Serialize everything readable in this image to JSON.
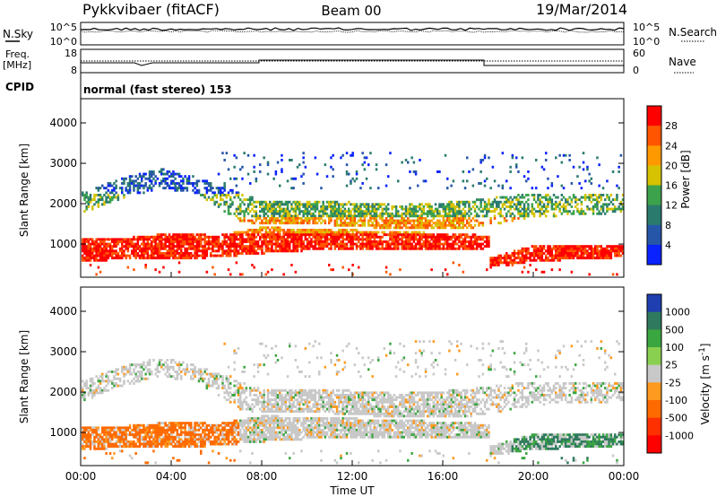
{
  "header": {
    "radar_title": "Pykkvibaer (fitACF)",
    "beam_label": "Beam 00",
    "date_label": "19/Mar/2014"
  },
  "top_panels": {
    "nsky_label": "N.Sky",
    "nsky_ticks": [
      "10^5",
      "10^0"
    ],
    "nsearch_label": "N.Search",
    "nsearch_ticks": [
      "10^5",
      "10^0"
    ],
    "freq_label": "Freq.",
    "freq_unit": "[MHz]",
    "freq_ticks": [
      "18",
      "8"
    ],
    "nave_label": "Nave",
    "nave_ticks": [
      "60",
      "0"
    ],
    "cpid_label": "CPID",
    "cpid_text": "normal (fast stereo) 153"
  },
  "chart_data": [
    {
      "type": "heatmap",
      "panel": "power",
      "ylabel": "Slant Range [km]",
      "xlabel": "",
      "y_ticks": [
        1000,
        2000,
        3000,
        4000
      ],
      "ylim": [
        180,
        4600
      ],
      "x_ticks": [
        "00:00",
        "04:00",
        "08:00",
        "12:00",
        "16:00",
        "20:00",
        "00:00"
      ],
      "xlim_hours": [
        0,
        24
      ],
      "colorbar": {
        "label": "Power [dB]",
        "ticks": [
          "28",
          "24",
          "20",
          "16",
          "12",
          "8",
          "4"
        ],
        "colors": [
          "#ff0000",
          "#ff5500",
          "#ff9900",
          "#d6c200",
          "#3ca24c",
          "#2a7b6e",
          "#2656a8",
          "#0a22ff"
        ]
      }
    },
    {
      "type": "heatmap",
      "panel": "velocity",
      "ylabel": "Slant Range [km]",
      "xlabel": "Time UT",
      "y_ticks": [
        1000,
        2000,
        3000,
        4000
      ],
      "ylim": [
        180,
        4600
      ],
      "x_ticks": [
        "00:00",
        "04:00",
        "08:00",
        "12:00",
        "16:00",
        "20:00",
        "00:00"
      ],
      "xlim_hours": [
        0,
        24
      ],
      "colorbar": {
        "label": "Velocity [m s^-1]",
        "label_main": "Velocity",
        "label_unit": "[m s",
        "label_exp": "-1",
        "label_close": "]",
        "ticks": [
          "1000",
          "500",
          "100",
          "25",
          "-25",
          "-100",
          "-500",
          "-1000"
        ],
        "colors": [
          "#1f3fb0",
          "#2f7a5e",
          "#3aa640",
          "#8ad050",
          "#c8c8c8",
          "#ff9a20",
          "#ff6a00",
          "#ff3000",
          "#ff0000"
        ]
      }
    }
  ]
}
